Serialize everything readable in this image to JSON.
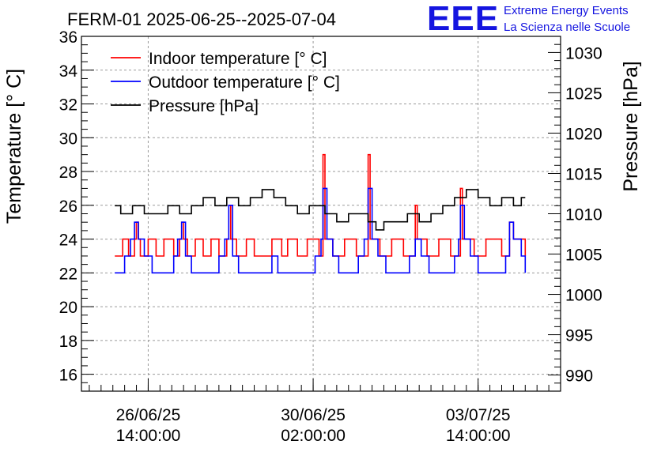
{
  "title": "FERM-01 2025-06-25--2025-07-04",
  "logo": {
    "mark": "EEE",
    "line1": "Extreme Energy Events",
    "line2": "La Scienza nelle Scuole",
    "color": "#1515e0"
  },
  "chart_data": {
    "type": "line",
    "title": "FERM-01 2025-06-25--2025-07-04",
    "xlabel": "",
    "ylabel": "Temperature [° C]",
    "y2label": "Pressure [hPa]",
    "xlim": [
      "2025-06-25T04:00",
      "2025-07-05T08:00"
    ],
    "ylim": [
      15,
      36
    ],
    "y2lim": [
      988,
      1032
    ],
    "grid": true,
    "legend_position": "top-left",
    "x_ticks": [
      {
        "at": "2025-06-26T14:00",
        "line1": "26/06/25",
        "line2": "14:00:00"
      },
      {
        "at": "2025-06-30T02:00",
        "line1": "30/06/25",
        "line2": "02:00:00"
      },
      {
        "at": "2025-07-03T14:00",
        "line1": "03/07/25",
        "line2": "14:00:00"
      }
    ],
    "y_ticks": [
      "16",
      "18",
      "20",
      "22",
      "24",
      "26",
      "28",
      "30",
      "32",
      "34",
      "36"
    ],
    "y2_ticks": [
      "990",
      "995",
      "1000",
      "1005",
      "1010",
      "1015",
      "1020",
      "1025",
      "1030"
    ],
    "series": [
      {
        "name": "Indoor temperature [° C]",
        "axis": "left",
        "color": "#ff0000",
        "points": [
          [
            "2025-06-25T21:00",
            23
          ],
          [
            "2025-06-26T01:00",
            24
          ],
          [
            "2025-06-26T04:00",
            23
          ],
          [
            "2025-06-26T07:00",
            24
          ],
          [
            "2025-06-26T08:00",
            25
          ],
          [
            "2025-06-26T09:00",
            24
          ],
          [
            "2025-06-26T10:00",
            23
          ],
          [
            "2025-06-26T14:00",
            24
          ],
          [
            "2025-06-26T18:00",
            23
          ],
          [
            "2025-06-26T22:00",
            24
          ],
          [
            "2025-06-27T03:00",
            23
          ],
          [
            "2025-06-27T06:00",
            24
          ],
          [
            "2025-06-27T07:00",
            25
          ],
          [
            "2025-06-27T08:00",
            24
          ],
          [
            "2025-06-27T10:00",
            23
          ],
          [
            "2025-06-27T14:00",
            24
          ],
          [
            "2025-06-27T18:00",
            23
          ],
          [
            "2025-06-27T22:00",
            24
          ],
          [
            "2025-06-28T02:00",
            23
          ],
          [
            "2025-06-28T06:00",
            24
          ],
          [
            "2025-06-28T07:00",
            26
          ],
          [
            "2025-06-28T08:00",
            24
          ],
          [
            "2025-06-28T11:00",
            23
          ],
          [
            "2025-06-28T16:00",
            24
          ],
          [
            "2025-06-28T20:00",
            23
          ],
          [
            "2025-06-29T00:00",
            23
          ],
          [
            "2025-06-29T05:00",
            24
          ],
          [
            "2025-06-29T10:00",
            23
          ],
          [
            "2025-06-29T13:00",
            24
          ],
          [
            "2025-06-29T18:00",
            23
          ],
          [
            "2025-06-29T23:00",
            24
          ],
          [
            "2025-06-30T05:00",
            23
          ],
          [
            "2025-06-30T07:00",
            29
          ],
          [
            "2025-06-30T08:00",
            24
          ],
          [
            "2025-06-30T12:00",
            23
          ],
          [
            "2025-06-30T18:00",
            24
          ],
          [
            "2025-07-01T00:00",
            23
          ],
          [
            "2025-07-01T06:00",
            29
          ],
          [
            "2025-07-01T07:00",
            24
          ],
          [
            "2025-07-01T12:00",
            23
          ],
          [
            "2025-07-01T18:00",
            24
          ],
          [
            "2025-07-02T00:00",
            23
          ],
          [
            "2025-07-02T06:00",
            26
          ],
          [
            "2025-07-02T07:00",
            24
          ],
          [
            "2025-07-02T12:00",
            23
          ],
          [
            "2025-07-02T18:00",
            24
          ],
          [
            "2025-07-03T00:00",
            23
          ],
          [
            "2025-07-03T05:00",
            27
          ],
          [
            "2025-07-03T06:00",
            24
          ],
          [
            "2025-07-03T12:00",
            23
          ],
          [
            "2025-07-03T18:00",
            24
          ],
          [
            "2025-07-04T02:00",
            23
          ],
          [
            "2025-07-04T06:00",
            25
          ],
          [
            "2025-07-04T08:00",
            24
          ],
          [
            "2025-07-04T14:00",
            23
          ]
        ]
      },
      {
        "name": "Outdoor temperature [° C]",
        "axis": "left",
        "color": "#0000ff",
        "points": [
          [
            "2025-06-25T21:00",
            22
          ],
          [
            "2025-06-26T00:00",
            22
          ],
          [
            "2025-06-26T02:00",
            23
          ],
          [
            "2025-06-26T05:00",
            24
          ],
          [
            "2025-06-26T07:00",
            25
          ],
          [
            "2025-06-26T09:00",
            24
          ],
          [
            "2025-06-26T12:00",
            23
          ],
          [
            "2025-06-26T16:00",
            22
          ],
          [
            "2025-06-27T00:00",
            22
          ],
          [
            "2025-06-27T03:00",
            23
          ],
          [
            "2025-06-27T05:00",
            24
          ],
          [
            "2025-06-27T07:00",
            25
          ],
          [
            "2025-06-27T09:00",
            23
          ],
          [
            "2025-06-27T12:00",
            22
          ],
          [
            "2025-06-27T22:00",
            22
          ],
          [
            "2025-06-28T02:00",
            23
          ],
          [
            "2025-06-28T05:00",
            24
          ],
          [
            "2025-06-28T07:00",
            26
          ],
          [
            "2025-06-28T09:00",
            23
          ],
          [
            "2025-06-28T12:00",
            22
          ],
          [
            "2025-06-29T02:00",
            22
          ],
          [
            "2025-06-29T05:00",
            23
          ],
          [
            "2025-06-29T08:00",
            22
          ],
          [
            "2025-06-29T20:00",
            22
          ],
          [
            "2025-06-30T03:00",
            23
          ],
          [
            "2025-06-30T06:00",
            24
          ],
          [
            "2025-06-30T07:00",
            27
          ],
          [
            "2025-06-30T09:00",
            24
          ],
          [
            "2025-06-30T12:00",
            23
          ],
          [
            "2025-06-30T15:00",
            22
          ],
          [
            "2025-07-01T01:00",
            23
          ],
          [
            "2025-07-01T04:00",
            24
          ],
          [
            "2025-07-01T06:00",
            27
          ],
          [
            "2025-07-01T08:00",
            24
          ],
          [
            "2025-07-01T11:00",
            23
          ],
          [
            "2025-07-01T15:00",
            22
          ],
          [
            "2025-07-02T00:00",
            22
          ],
          [
            "2025-07-02T03:00",
            23
          ],
          [
            "2025-07-02T06:00",
            24
          ],
          [
            "2025-07-02T09:00",
            23
          ],
          [
            "2025-07-02T13:00",
            22
          ],
          [
            "2025-07-03T00:00",
            22
          ],
          [
            "2025-07-03T02:00",
            23
          ],
          [
            "2025-07-03T04:00",
            24
          ],
          [
            "2025-07-03T05:00",
            26
          ],
          [
            "2025-07-03T07:00",
            24
          ],
          [
            "2025-07-03T10:00",
            23
          ],
          [
            "2025-07-03T14:00",
            22
          ],
          [
            "2025-07-04T02:00",
            22
          ],
          [
            "2025-07-04T04:00",
            23
          ],
          [
            "2025-07-04T06:00",
            25
          ],
          [
            "2025-07-04T08:00",
            24
          ],
          [
            "2025-07-04T12:00",
            23
          ],
          [
            "2025-07-04T14:00",
            22
          ]
        ]
      },
      {
        "name": "Pressure [hPa]",
        "axis": "right",
        "color": "#000000",
        "points": [
          [
            "2025-06-25T21:00",
            1011
          ],
          [
            "2025-06-26T00:00",
            1010
          ],
          [
            "2025-06-26T06:00",
            1011
          ],
          [
            "2025-06-26T12:00",
            1010
          ],
          [
            "2025-06-26T18:00",
            1010
          ],
          [
            "2025-06-27T00:00",
            1011
          ],
          [
            "2025-06-27T06:00",
            1010
          ],
          [
            "2025-06-27T12:00",
            1011
          ],
          [
            "2025-06-27T18:00",
            1012
          ],
          [
            "2025-06-28T00:00",
            1011
          ],
          [
            "2025-06-28T06:00",
            1012
          ],
          [
            "2025-06-28T12:00",
            1011
          ],
          [
            "2025-06-28T18:00",
            1012
          ],
          [
            "2025-06-29T00:00",
            1013
          ],
          [
            "2025-06-29T06:00",
            1012
          ],
          [
            "2025-06-29T12:00",
            1011
          ],
          [
            "2025-06-29T18:00",
            1010
          ],
          [
            "2025-06-30T00:00",
            1011
          ],
          [
            "2025-06-30T06:00",
            1011
          ],
          [
            "2025-06-30T08:00",
            1010
          ],
          [
            "2025-06-30T14:00",
            1009
          ],
          [
            "2025-06-30T20:00",
            1010
          ],
          [
            "2025-07-01T02:00",
            1010
          ],
          [
            "2025-07-01T06:00",
            1009
          ],
          [
            "2025-07-01T10:00",
            1008
          ],
          [
            "2025-07-01T14:00",
            1009
          ],
          [
            "2025-07-01T20:00",
            1009
          ],
          [
            "2025-07-02T02:00",
            1010
          ],
          [
            "2025-07-02T08:00",
            1009
          ],
          [
            "2025-07-02T14:00",
            1010
          ],
          [
            "2025-07-02T20:00",
            1011
          ],
          [
            "2025-07-03T02:00",
            1012
          ],
          [
            "2025-07-03T08:00",
            1013
          ],
          [
            "2025-07-03T14:00",
            1012
          ],
          [
            "2025-07-03T20:00",
            1011
          ],
          [
            "2025-07-04T02:00",
            1012
          ],
          [
            "2025-07-04T08:00",
            1011
          ],
          [
            "2025-07-04T12:00",
            1012
          ],
          [
            "2025-07-04T14:00",
            1012
          ]
        ]
      }
    ]
  }
}
